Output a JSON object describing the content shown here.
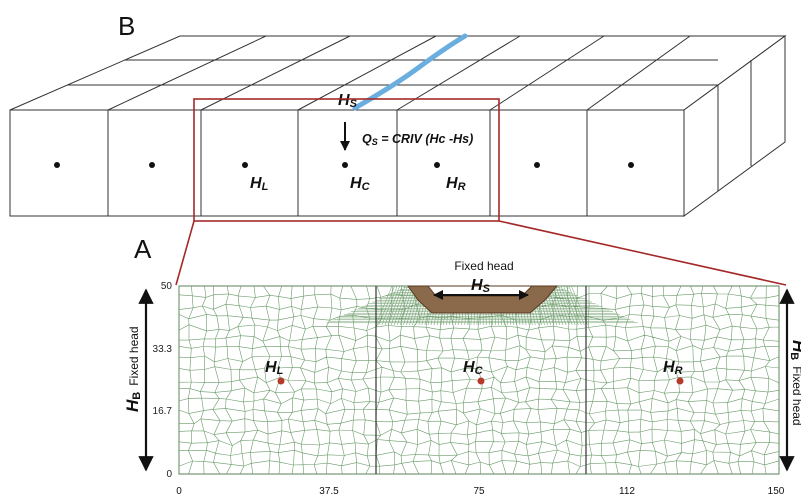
{
  "panel_b": {
    "label": "B",
    "hs_label": "HS",
    "hs_main": "H",
    "hs_sub": "S",
    "flux_eq": "QS = CRIV (Hc -Hs)",
    "flux_q": "Q",
    "flux_q_sub": "S",
    "flux_rest": " = CRIV  (Hc -Hs)",
    "hl_main": "H",
    "hl_sub": "L",
    "hc_main": "H",
    "hc_sub": "C",
    "hr_main": "H",
    "hr_sub": "R"
  },
  "panel_a": {
    "label": "A",
    "fixed_head_top": "Fixed head",
    "hs_main": "H",
    "hs_sub": "S",
    "left_bc_main": "H",
    "left_bc_sub": "B",
    "left_bc_text": "Fixed head",
    "right_bc_main": "H",
    "right_bc_sub": "B",
    "right_bc_text": "Fixed head",
    "hl_main": "H",
    "hl_sub": "L",
    "hc_main": "H",
    "hc_sub": "C",
    "hr_main": "H",
    "hr_sub": "R",
    "y_ticks": [
      "0",
      "16.7",
      "33.3",
      "50"
    ],
    "x_ticks": [
      "0",
      "37.5",
      "75",
      "112",
      "150"
    ]
  },
  "colors": {
    "river": "#6aaee0",
    "frame": "#a42a2a",
    "mesh": "#6a9a68",
    "riverbed": "#8b6a4b",
    "node": "#b43a2a"
  }
}
